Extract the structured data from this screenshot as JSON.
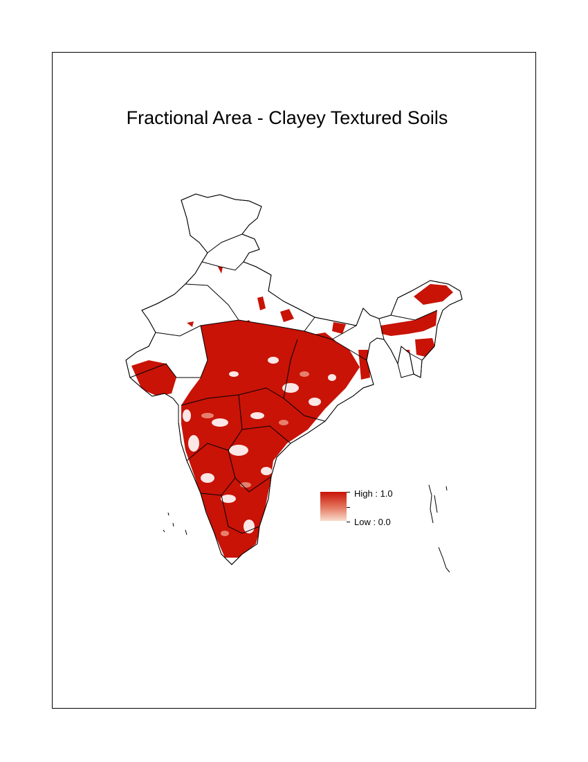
{
  "title": "Fractional Area - Clayey Textured Soils",
  "legend": {
    "high_label": "High : 1.0",
    "low_label": "Low : 0.0",
    "high_color": "#c81306",
    "low_color": "#f8dccc"
  },
  "colors": {
    "high": "#c81306",
    "mid": "#d8442e",
    "low": "#ee9c86",
    "outline": "#000000"
  }
}
